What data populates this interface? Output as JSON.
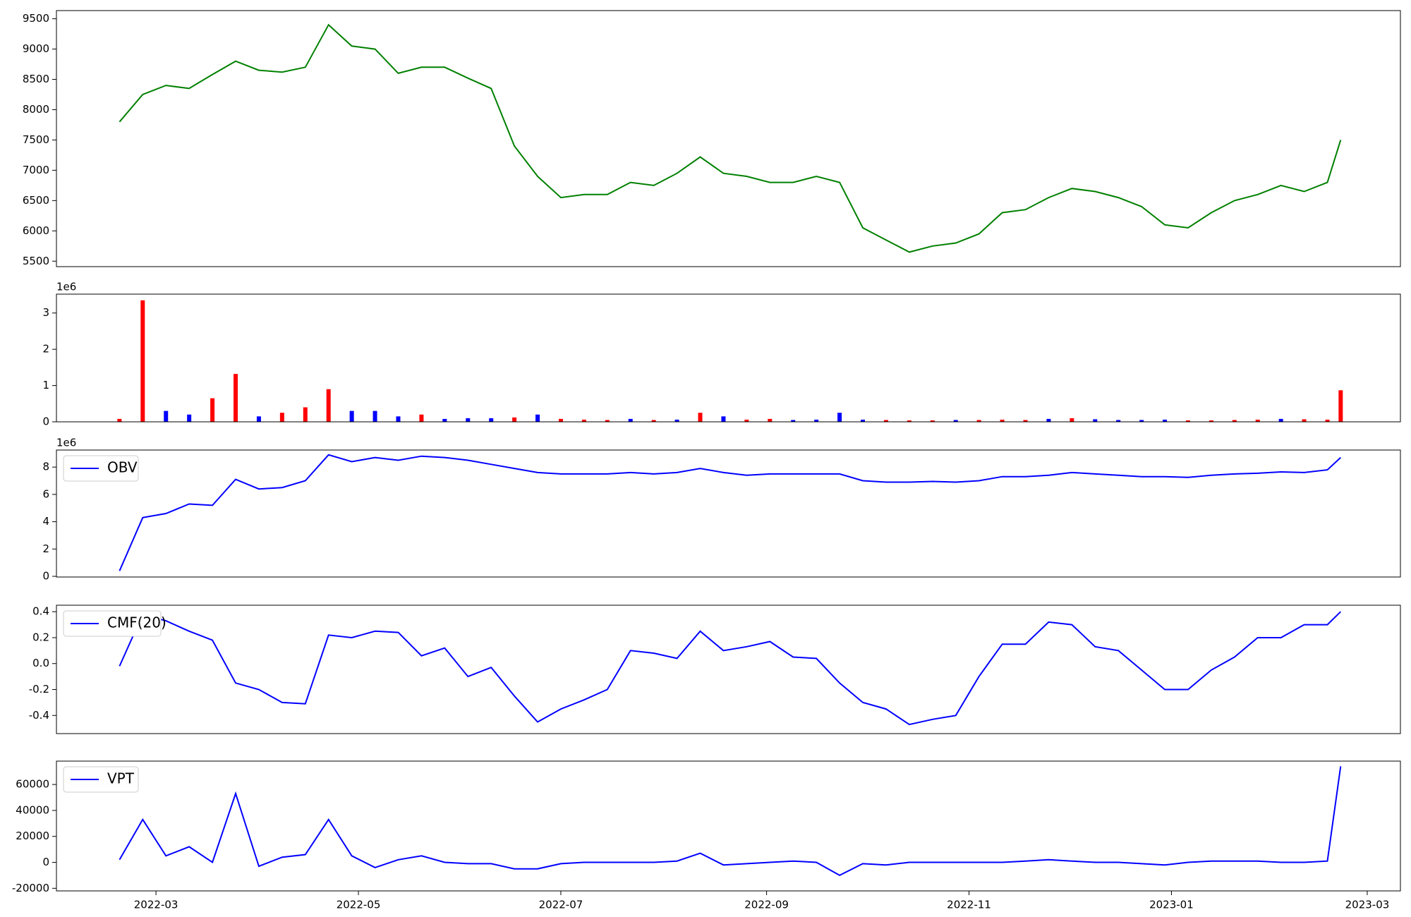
{
  "chart_data": [
    {
      "type": "line",
      "color": "#008000",
      "x": [
        "2022-02-18",
        "2022-02-25",
        "2022-03-04",
        "2022-03-11",
        "2022-03-18",
        "2022-03-25",
        "2022-04-01",
        "2022-04-08",
        "2022-04-15",
        "2022-04-22",
        "2022-04-29",
        "2022-05-06",
        "2022-05-13",
        "2022-05-20",
        "2022-05-27",
        "2022-06-03",
        "2022-06-10",
        "2022-06-17",
        "2022-06-24",
        "2022-07-01",
        "2022-07-08",
        "2022-07-15",
        "2022-07-22",
        "2022-07-29",
        "2022-08-05",
        "2022-08-12",
        "2022-08-19",
        "2022-08-26",
        "2022-09-02",
        "2022-09-09",
        "2022-09-16",
        "2022-09-23",
        "2022-09-30",
        "2022-10-07",
        "2022-10-14",
        "2022-10-21",
        "2022-10-28",
        "2022-11-04",
        "2022-11-11",
        "2022-11-18",
        "2022-11-25",
        "2022-12-02",
        "2022-12-09",
        "2022-12-16",
        "2022-12-23",
        "2022-12-30",
        "2023-01-06",
        "2023-01-13",
        "2023-01-20",
        "2023-01-27",
        "2023-02-03",
        "2023-02-10",
        "2023-02-17",
        "2023-02-21"
      ],
      "values": [
        7800,
        8250,
        8400,
        8350,
        8580,
        8800,
        8650,
        8620,
        8700,
        9400,
        9050,
        9000,
        8600,
        8700,
        8700,
        8520,
        8350,
        7400,
        6900,
        6550,
        6600,
        6600,
        6800,
        6750,
        6950,
        7220,
        6950,
        6900,
        6800,
        6800,
        6900,
        6800,
        6050,
        5850,
        5650,
        5750,
        5800,
        5950,
        6300,
        6350,
        6550,
        6700,
        6650,
        6550,
        6400,
        6100,
        6050,
        6300,
        6500,
        6600,
        6750,
        6650,
        6800,
        7500
      ],
      "xlim": [
        "2022-01-30",
        "2023-03-11"
      ],
      "ylim": [
        5410,
        9635
      ],
      "yticks": [
        5500,
        6000,
        6500,
        7000,
        7500,
        8000,
        8500,
        9000,
        9500
      ]
    },
    {
      "type": "bar",
      "offset_label": "1e6",
      "x": [
        "2022-02-18",
        "2022-02-25",
        "2022-03-04",
        "2022-03-11",
        "2022-03-18",
        "2022-03-25",
        "2022-04-01",
        "2022-04-08",
        "2022-04-15",
        "2022-04-22",
        "2022-04-29",
        "2022-05-06",
        "2022-05-13",
        "2022-05-20",
        "2022-05-27",
        "2022-06-03",
        "2022-06-10",
        "2022-06-17",
        "2022-06-24",
        "2022-07-01",
        "2022-07-08",
        "2022-07-15",
        "2022-07-22",
        "2022-07-29",
        "2022-08-05",
        "2022-08-12",
        "2022-08-19",
        "2022-08-26",
        "2022-09-02",
        "2022-09-09",
        "2022-09-16",
        "2022-09-23",
        "2022-09-30",
        "2022-10-07",
        "2022-10-14",
        "2022-10-21",
        "2022-10-28",
        "2022-11-04",
        "2022-11-11",
        "2022-11-18",
        "2022-11-25",
        "2022-12-02",
        "2022-12-09",
        "2022-12-16",
        "2022-12-23",
        "2022-12-30",
        "2023-01-06",
        "2023-01-13",
        "2023-01-20",
        "2023-01-27",
        "2023-02-03",
        "2023-02-10",
        "2023-02-17",
        "2023-02-21"
      ],
      "values": [
        0.08,
        3.35,
        0.3,
        0.2,
        0.65,
        1.32,
        0.15,
        0.25,
        0.4,
        0.9,
        0.3,
        0.3,
        0.15,
        0.2,
        0.08,
        0.1,
        0.1,
        0.12,
        0.2,
        0.08,
        0.06,
        0.05,
        0.08,
        0.05,
        0.06,
        0.25,
        0.15,
        0.06,
        0.08,
        0.05,
        0.06,
        0.25,
        0.06,
        0.05,
        0.04,
        0.04,
        0.05,
        0.05,
        0.06,
        0.05,
        0.08,
        0.1,
        0.07,
        0.05,
        0.05,
        0.06,
        0.04,
        0.04,
        0.05,
        0.06,
        0.08,
        0.07,
        0.06,
        0.87
      ],
      "colors": [
        "red",
        "red",
        "blue",
        "blue",
        "red",
        "red",
        "blue",
        "red",
        "red",
        "red",
        "blue",
        "blue",
        "blue",
        "red",
        "blue",
        "blue",
        "blue",
        "red",
        "blue",
        "red",
        "red",
        "red",
        "blue",
        "red",
        "blue",
        "red",
        "blue",
        "red",
        "red",
        "blue",
        "blue",
        "blue",
        "blue",
        "red",
        "red",
        "red",
        "blue",
        "red",
        "red",
        "red",
        "blue",
        "red",
        "blue",
        "blue",
        "blue",
        "blue",
        "red",
        "red",
        "red",
        "red",
        "blue",
        "red",
        "red",
        "red"
      ],
      "xlim": [
        "2022-01-30",
        "2023-03-11"
      ],
      "ylim": [
        0,
        3.52
      ],
      "yticks": [
        0,
        1,
        2,
        3
      ]
    },
    {
      "type": "line",
      "offset_label": "1e6",
      "legend": "upper left",
      "x": [
        "2022-02-18",
        "2022-02-25",
        "2022-03-04",
        "2022-03-11",
        "2022-03-18",
        "2022-03-25",
        "2022-04-01",
        "2022-04-08",
        "2022-04-15",
        "2022-04-22",
        "2022-04-29",
        "2022-05-06",
        "2022-05-13",
        "2022-05-20",
        "2022-05-27",
        "2022-06-03",
        "2022-06-10",
        "2022-06-17",
        "2022-06-24",
        "2022-07-01",
        "2022-07-08",
        "2022-07-15",
        "2022-07-22",
        "2022-07-29",
        "2022-08-05",
        "2022-08-12",
        "2022-08-19",
        "2022-08-26",
        "2022-09-02",
        "2022-09-09",
        "2022-09-16",
        "2022-09-23",
        "2022-09-30",
        "2022-10-07",
        "2022-10-14",
        "2022-10-21",
        "2022-10-28",
        "2022-11-04",
        "2022-11-11",
        "2022-11-18",
        "2022-11-25",
        "2022-12-02",
        "2022-12-09",
        "2022-12-16",
        "2022-12-23",
        "2022-12-30",
        "2023-01-06",
        "2023-01-13",
        "2023-01-20",
        "2023-01-27",
        "2023-02-03",
        "2023-02-10",
        "2023-02-17",
        "2023-02-21"
      ],
      "series": [
        {
          "name": "OBV",
          "color": "#0000ff",
          "values": [
            0.4,
            4.3,
            4.6,
            5.3,
            5.2,
            7.1,
            6.4,
            6.5,
            7.0,
            8.9,
            8.4,
            8.7,
            8.5,
            8.8,
            8.7,
            8.5,
            8.2,
            7.9,
            7.6,
            7.5,
            7.5,
            7.5,
            7.6,
            7.5,
            7.6,
            7.9,
            7.6,
            7.4,
            7.5,
            7.5,
            7.5,
            7.5,
            7.0,
            6.9,
            6.9,
            6.95,
            6.9,
            7.0,
            7.3,
            7.3,
            7.4,
            7.6,
            7.5,
            7.4,
            7.3,
            7.3,
            7.25,
            7.4,
            7.5,
            7.55,
            7.65,
            7.6,
            7.8,
            8.7
          ]
        }
      ],
      "xlim": [
        "2022-01-30",
        "2023-03-11"
      ],
      "ylim": [
        -0.05,
        9.25
      ],
      "yticks": [
        0,
        2,
        4,
        6,
        8
      ]
    },
    {
      "type": "line",
      "legend": "upper left",
      "x": [
        "2022-02-18",
        "2022-02-25",
        "2022-03-04",
        "2022-03-11",
        "2022-03-18",
        "2022-03-25",
        "2022-04-01",
        "2022-04-08",
        "2022-04-15",
        "2022-04-22",
        "2022-04-29",
        "2022-05-06",
        "2022-05-13",
        "2022-05-20",
        "2022-05-27",
        "2022-06-03",
        "2022-06-10",
        "2022-06-17",
        "2022-06-24",
        "2022-07-01",
        "2022-07-08",
        "2022-07-15",
        "2022-07-22",
        "2022-07-29",
        "2022-08-05",
        "2022-08-12",
        "2022-08-19",
        "2022-08-26",
        "2022-09-02",
        "2022-09-09",
        "2022-09-16",
        "2022-09-23",
        "2022-09-30",
        "2022-10-07",
        "2022-10-14",
        "2022-10-21",
        "2022-10-28",
        "2022-11-04",
        "2022-11-11",
        "2022-11-18",
        "2022-11-25",
        "2022-12-02",
        "2022-12-09",
        "2022-12-16",
        "2022-12-23",
        "2022-12-30",
        "2023-01-06",
        "2023-01-13",
        "2023-01-20",
        "2023-01-27",
        "2023-02-03",
        "2023-02-10",
        "2023-02-17",
        "2023-02-21"
      ],
      "series": [
        {
          "name": "CMF(20)",
          "color": "#0000ff",
          "values": [
            -0.02,
            0.38,
            0.33,
            0.25,
            0.18,
            -0.15,
            -0.2,
            -0.3,
            -0.31,
            0.22,
            0.2,
            0.25,
            0.24,
            0.06,
            0.12,
            -0.1,
            -0.03,
            -0.25,
            -0.45,
            -0.35,
            -0.28,
            -0.2,
            0.1,
            0.08,
            0.04,
            0.25,
            0.1,
            0.13,
            0.17,
            0.05,
            0.04,
            -0.15,
            -0.3,
            -0.35,
            -0.47,
            -0.43,
            -0.4,
            -0.1,
            0.15,
            0.15,
            0.32,
            0.3,
            0.13,
            0.1,
            -0.05,
            -0.2,
            -0.2,
            -0.05,
            0.05,
            0.2,
            0.2,
            0.3,
            0.3,
            0.4
          ]
        }
      ],
      "xlim": [
        "2022-01-30",
        "2023-03-11"
      ],
      "ylim": [
        -0.54,
        0.45
      ],
      "yticks": [
        -0.4,
        -0.2,
        {
          "value": 0,
          "label": "0.0"
        },
        0.2,
        0.4
      ]
    },
    {
      "type": "line",
      "legend": "upper left",
      "x": [
        "2022-02-18",
        "2022-02-25",
        "2022-03-04",
        "2022-03-11",
        "2022-03-18",
        "2022-03-25",
        "2022-04-01",
        "2022-04-08",
        "2022-04-15",
        "2022-04-22",
        "2022-04-29",
        "2022-05-06",
        "2022-05-13",
        "2022-05-20",
        "2022-05-27",
        "2022-06-03",
        "2022-06-10",
        "2022-06-17",
        "2022-06-24",
        "2022-07-01",
        "2022-07-08",
        "2022-07-15",
        "2022-07-22",
        "2022-07-29",
        "2022-08-05",
        "2022-08-12",
        "2022-08-19",
        "2022-08-26",
        "2022-09-02",
        "2022-09-09",
        "2022-09-16",
        "2022-09-23",
        "2022-09-30",
        "2022-10-07",
        "2022-10-14",
        "2022-10-21",
        "2022-10-28",
        "2022-11-04",
        "2022-11-11",
        "2022-11-18",
        "2022-11-25",
        "2022-12-02",
        "2022-12-09",
        "2022-12-16",
        "2022-12-23",
        "2022-12-30",
        "2023-01-06",
        "2023-01-13",
        "2023-01-20",
        "2023-01-27",
        "2023-02-03",
        "2023-02-10",
        "2023-02-17",
        "2023-02-21"
      ],
      "series": [
        {
          "name": "VPT",
          "color": "#0000ff",
          "values": [
            2000,
            33000,
            5000,
            12000,
            0,
            53000,
            -3000,
            4000,
            6000,
            33000,
            5000,
            -4000,
            2000,
            5000,
            0,
            -1000,
            -1000,
            -5000,
            -5000,
            -1000,
            0,
            0,
            0,
            0,
            1000,
            7000,
            -2000,
            -1000,
            0,
            1000,
            0,
            -10000,
            -1000,
            -2000,
            0,
            0,
            0,
            0,
            0,
            1000,
            2000,
            1000,
            0,
            0,
            -1000,
            -2000,
            0,
            1000,
            1000,
            1000,
            0,
            0,
            1000,
            74000
          ]
        }
      ],
      "xlim": [
        "2022-01-30",
        "2023-03-11"
      ],
      "ylim": [
        -22000,
        78000
      ],
      "yticks": [
        -20000,
        0,
        20000,
        40000,
        60000
      ],
      "xticks": [
        {
          "value": "2022-03",
          "label": "2022-03"
        },
        {
          "value": "2022-05",
          "label": "2022-05"
        },
        {
          "value": "2022-07",
          "label": "2022-07"
        },
        {
          "value": "2022-09",
          "label": "2022-09"
        },
        {
          "value": "2022-11",
          "label": "2022-11"
        },
        {
          "value": "2023-01",
          "label": "2023-01"
        },
        {
          "value": "2023-03",
          "label": "2023-03"
        }
      ]
    }
  ]
}
